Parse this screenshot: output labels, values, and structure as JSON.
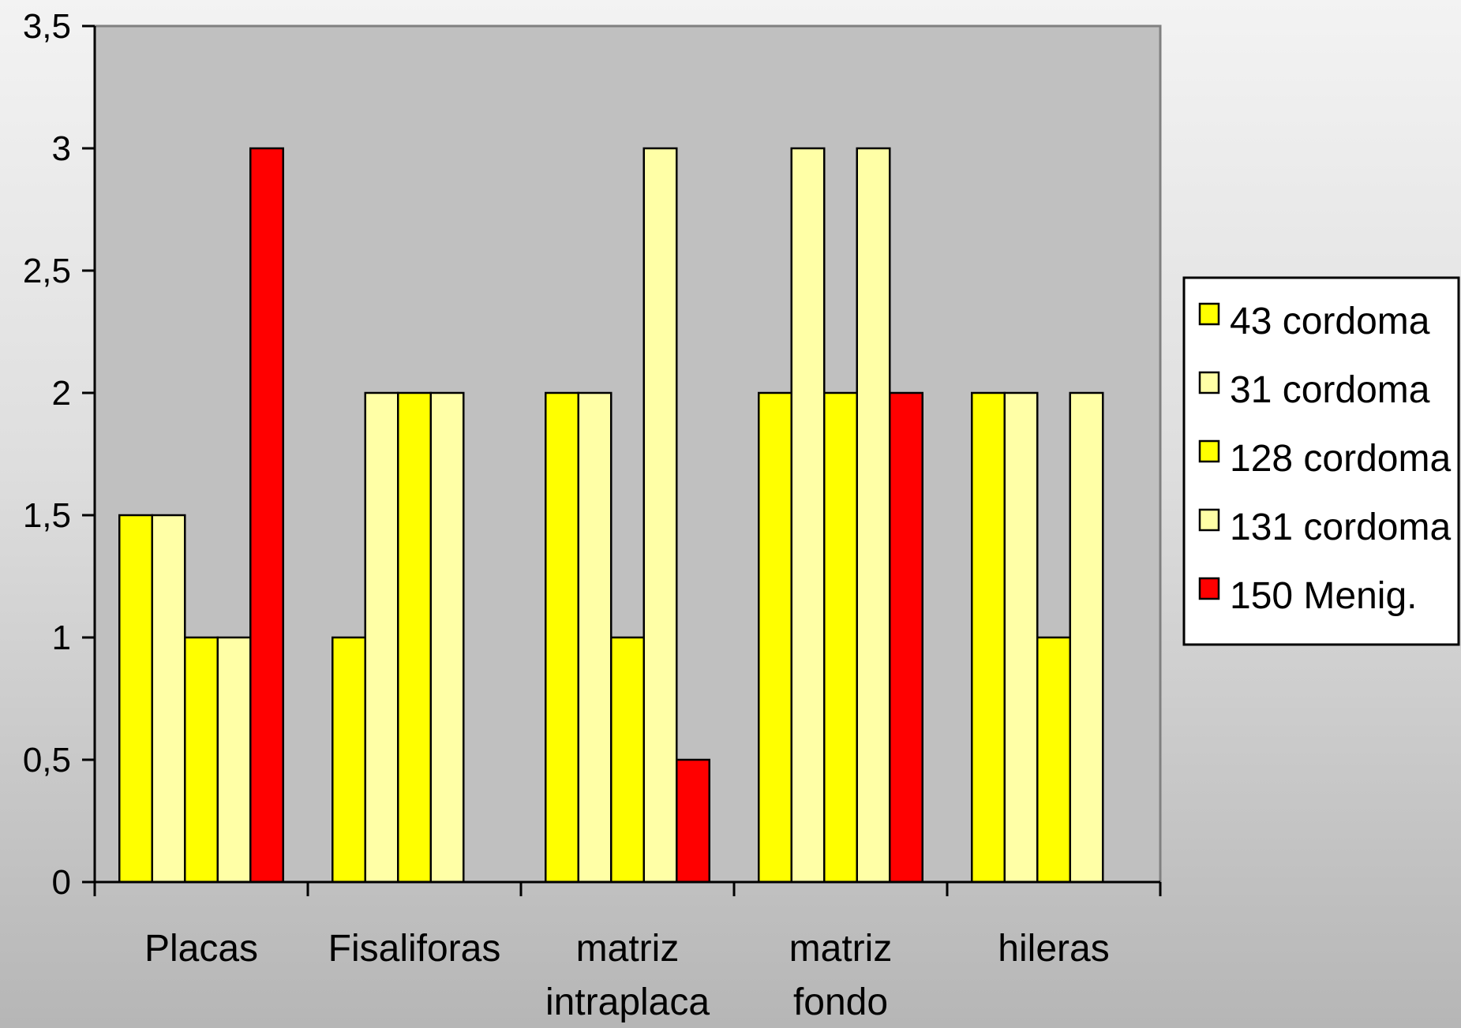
{
  "chart_data": {
    "type": "bar",
    "categories": [
      [
        "Placas"
      ],
      [
        "Fisaliforas"
      ],
      [
        "matriz",
        "intraplaca"
      ],
      [
        "matriz",
        "fondo"
      ],
      [
        "hileras"
      ]
    ],
    "series": [
      {
        "name": "43 cordoma",
        "color": "#ffff00",
        "values": [
          1.5,
          1,
          2,
          2,
          2
        ]
      },
      {
        "name": "31 cordoma",
        "color": "#ffffa6",
        "values": [
          1.5,
          2,
          2,
          3,
          2
        ]
      },
      {
        "name": "128 cordoma",
        "color": "#ffff00",
        "values": [
          1,
          2,
          1,
          2,
          1
        ]
      },
      {
        "name": "131 cordoma",
        "color": "#ffffa6",
        "values": [
          1,
          2,
          3,
          3,
          2
        ]
      },
      {
        "name": "150 Menig.",
        "color": "#ff0000",
        "values": [
          3,
          0,
          0.5,
          2,
          0
        ]
      }
    ],
    "ylim": [
      0,
      3.5
    ],
    "yticks": [
      0,
      0.5,
      1,
      1.5,
      2,
      2.5,
      3,
      3.5
    ],
    "ytick_labels": [
      "0",
      "0,5",
      "1",
      "1,5",
      "2",
      "2,5",
      "3",
      "3,5"
    ],
    "plot_background": "#c0c0c0",
    "legend_position": "right",
    "grid": false
  }
}
